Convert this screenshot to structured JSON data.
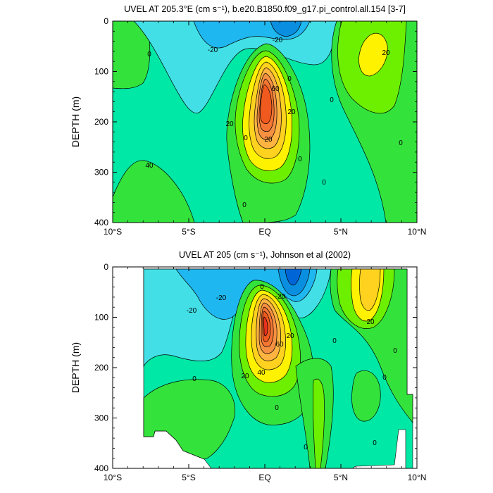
{
  "chart_data": [
    {
      "type": "contour",
      "title": "UVEL AT 205.3°E (cm s⁻¹), b.e20.B1850.f09_g17.pi_control.all.154 [3-7]",
      "ylabel": "DEPTH (m)",
      "x_ticks": [
        "10°S",
        "5°S",
        "EQ",
        "5°N",
        "10°N"
      ],
      "x_tick_values": [
        -10,
        -5,
        0,
        5,
        10
      ],
      "y_ticks": [
        "0",
        "100",
        "200",
        "300",
        "400"
      ],
      "y_tick_values": [
        0,
        100,
        200,
        300,
        400
      ],
      "xlim": [
        -10,
        10
      ],
      "ylim": [
        400,
        0
      ],
      "contour_labels": [
        "0",
        "-20",
        "-20",
        "20",
        "0",
        "0",
        "20",
        "60",
        "20",
        "0",
        "20",
        "40",
        "0",
        "0",
        "0",
        "0",
        "0"
      ],
      "features": [
        {
          "kind": "max",
          "lat": 0.0,
          "depth": 150,
          "value": 95
        },
        {
          "kind": "max",
          "lat": 7.0,
          "depth": 70,
          "value": 25
        },
        {
          "kind": "min",
          "lat": 0.9,
          "depth": 0,
          "value": -40
        }
      ]
    },
    {
      "type": "contour",
      "title": "UVEL AT 205 (cm s⁻¹), Johnson et al (2002)",
      "ylabel": "DEPTH (m)",
      "x_ticks": [
        "10°S",
        "5°S",
        "EQ",
        "5°N",
        "10°N"
      ],
      "x_tick_values": [
        -10,
        -5,
        0,
        5,
        10
      ],
      "y_ticks": [
        "0",
        "100",
        "200",
        "300",
        "400"
      ],
      "y_tick_values": [
        0,
        100,
        200,
        300,
        400
      ],
      "xlim": [
        -10,
        10
      ],
      "ylim": [
        400,
        0
      ],
      "contour_labels": [
        "-20",
        "-20",
        "0",
        "-20",
        "20",
        "60",
        "20",
        "40",
        "20",
        "0",
        "0",
        "0",
        "0",
        "0",
        "0",
        "0"
      ],
      "features": [
        {
          "kind": "max",
          "lat": 0.0,
          "depth": 135,
          "value": 100
        },
        {
          "kind": "max",
          "lat": 6.8,
          "depth": 50,
          "value": 35
        },
        {
          "kind": "min",
          "lat": 1.9,
          "depth": 10,
          "value": -45
        }
      ]
    }
  ]
}
